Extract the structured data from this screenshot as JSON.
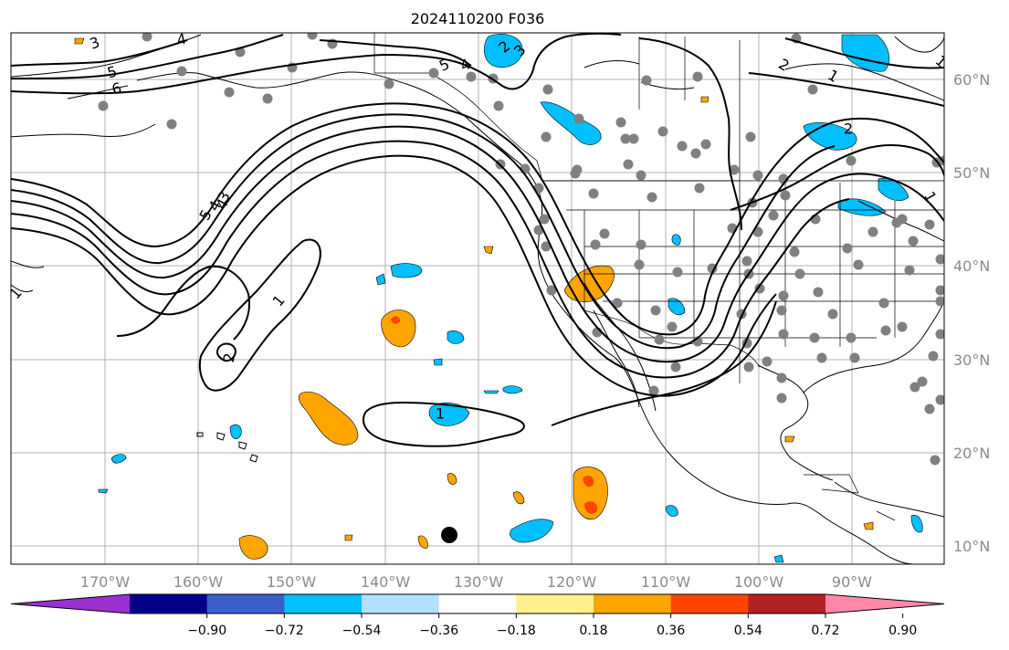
{
  "title": "2024110200 F036",
  "lon_labels": [
    "170°W",
    "160°W",
    "150°W",
    "140°W",
    "130°W",
    "120°W",
    "110°W",
    "100°W",
    "90°W"
  ],
  "lat_labels": [
    "60°N",
    "50°N",
    "40°N",
    "30°N",
    "20°N",
    "10°N"
  ],
  "colorbar": {
    "tick_labels": [
      "−0.90",
      "−0.72",
      "−0.54",
      "−0.36",
      "−0.18",
      "0.18",
      "0.36",
      "0.54",
      "0.72",
      "0.90"
    ],
    "colors": [
      "#9b30d0",
      "#00008b",
      "#3a5fcd",
      "#00bfff",
      "#b0e2ff",
      "#ffffff",
      "#fff08c",
      "#ffa500",
      "#ff4500",
      "#b22222",
      "#ff88aa"
    ]
  },
  "contour_labels": [
    "3",
    "5",
    "6",
    "4",
    "2",
    "3",
    "5",
    "4",
    "2",
    "1",
    "1",
    "1",
    "5",
    "4",
    "3",
    "4",
    "1",
    "2",
    "1",
    "2",
    "1"
  ],
  "marker": {
    "color": "#000000"
  },
  "station_color": "#808080"
}
